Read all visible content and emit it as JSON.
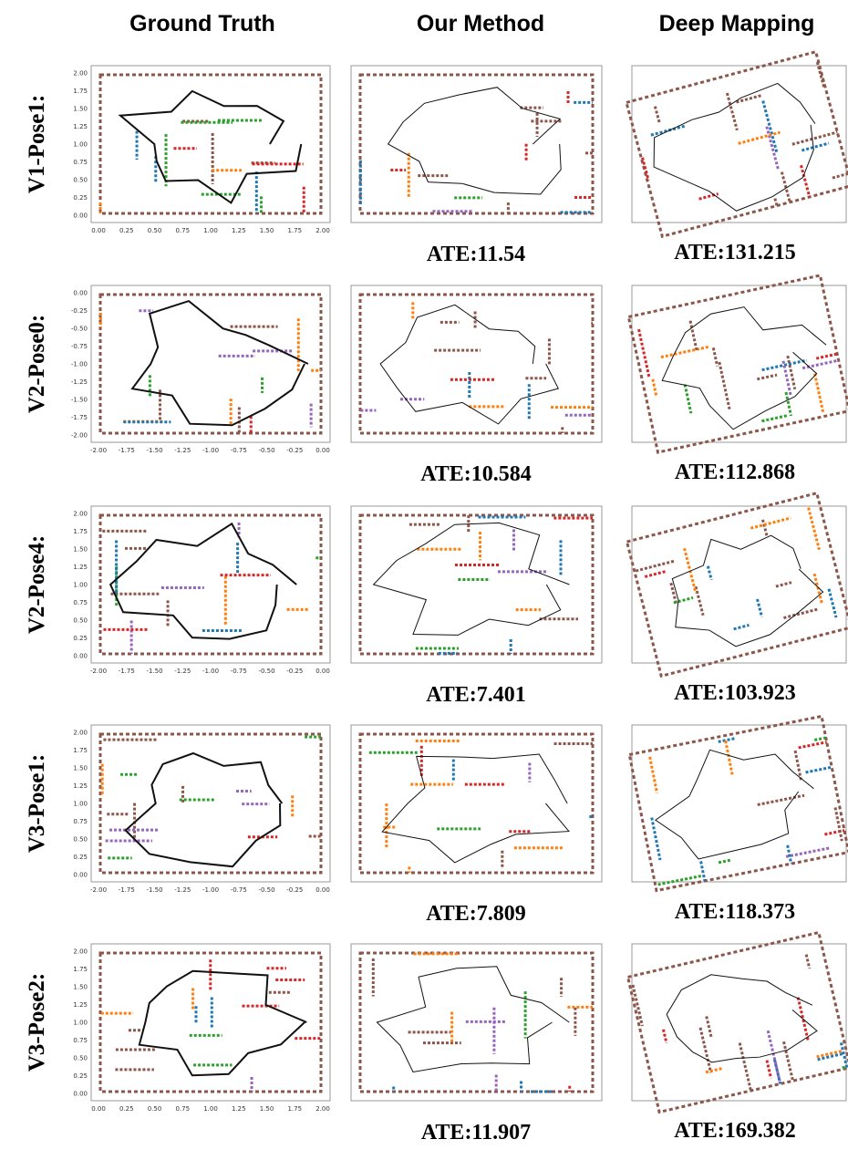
{
  "columns": [
    "Ground Truth",
    "Our Method",
    "Deep Mapping"
  ],
  "rows": [
    {
      "label": "V1-Pose1:",
      "ours_ate": "ATE:11.54",
      "deep_ate": "ATE:131.215",
      "gt_xticks": [
        "0.00",
        "0.25",
        "0.50",
        "0.75",
        "1.00",
        "1.25",
        "1.50",
        "1.75",
        "2.00"
      ],
      "gt_yticks": [
        "2.00",
        "1.75",
        "1.50",
        "1.25",
        "1.00",
        "0.75",
        "0.50",
        "0.25",
        "0.00"
      ]
    },
    {
      "label": "V2-Pose0:",
      "ours_ate": "ATE:10.584",
      "deep_ate": "ATE:112.868",
      "gt_xticks": [
        "-2.00",
        "-1.75",
        "-1.50",
        "-1.25",
        "-1.00",
        "-0.75",
        "-0.50",
        "-0.25",
        "0.00"
      ],
      "gt_yticks": [
        "0.00",
        "-0.25",
        "-0.50",
        "-0.75",
        "-1.00",
        "-1.25",
        "-1.50",
        "-1.75",
        "-2.00"
      ]
    },
    {
      "label": "V2-Pose4:",
      "ours_ate": "ATE:7.401",
      "deep_ate": "ATE:103.923",
      "gt_xticks": [
        "-2.00",
        "-1.75",
        "-1.50",
        "-1.25",
        "-1.00",
        "-0.75",
        "-0.50",
        "-0.25",
        "0.00"
      ],
      "gt_yticks": [
        "2.00",
        "1.75",
        "1.50",
        "1.25",
        "1.00",
        "0.75",
        "0.50",
        "0.25",
        "0.00"
      ]
    },
    {
      "label": "V3-Pose1:",
      "ours_ate": "ATE:7.809",
      "deep_ate": "ATE:118.373",
      "gt_xticks": [
        "-2.00",
        "-1.75",
        "-1.50",
        "-1.25",
        "-1.00",
        "-0.75",
        "-0.50",
        "-0.25",
        "0.00"
      ],
      "gt_yticks": [
        "2.00",
        "1.75",
        "1.50",
        "1.25",
        "1.00",
        "0.75",
        "0.50",
        "0.25",
        "0.00"
      ]
    },
    {
      "label": "V3-Pose2:",
      "ours_ate": "ATE:11.907",
      "deep_ate": "ATE:169.382",
      "gt_xticks": [
        "0.00",
        "0.25",
        "0.50",
        "0.75",
        "1.00",
        "1.25",
        "1.50",
        "1.75",
        "2.00"
      ],
      "gt_yticks": [
        "2.00",
        "1.75",
        "1.50",
        "1.25",
        "1.00",
        "0.75",
        "0.50",
        "0.25",
        "0.00"
      ]
    }
  ]
}
